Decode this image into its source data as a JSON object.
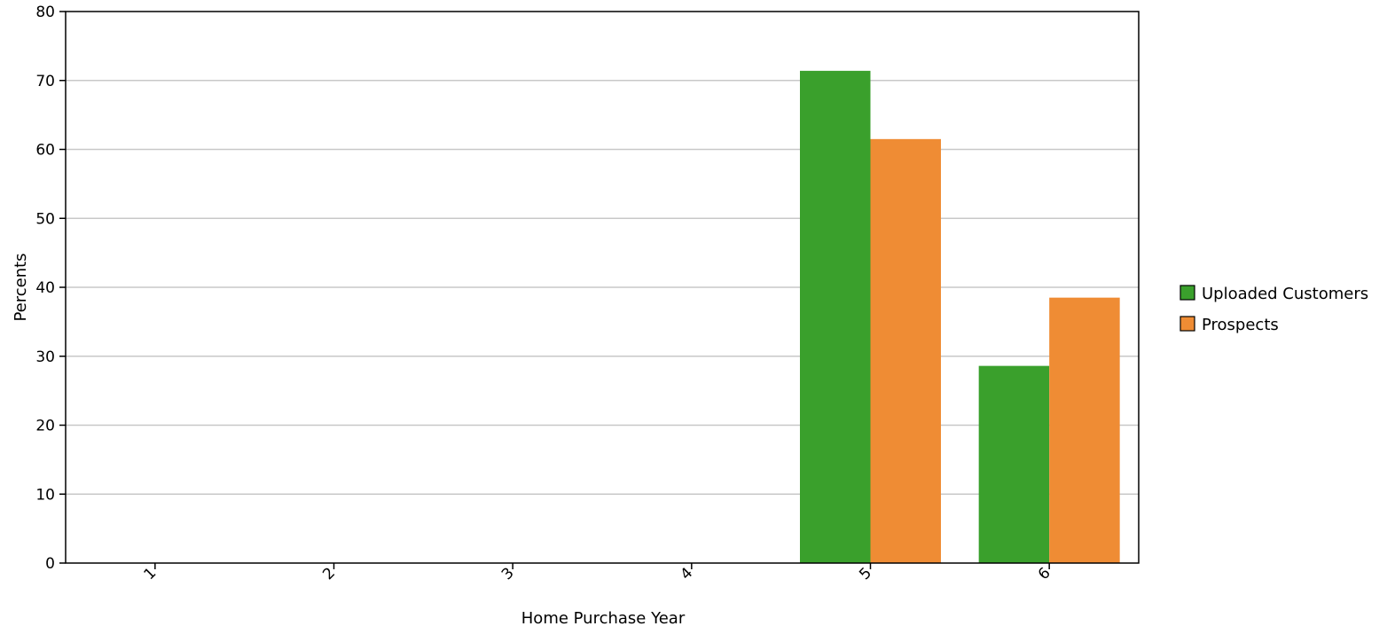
{
  "chart_data": {
    "type": "bar",
    "categories": [
      "1",
      "2",
      "3",
      "4",
      "5",
      "6"
    ],
    "series": [
      {
        "name": "Uploaded Customers",
        "color": "#3aa02c",
        "values": [
          0,
          0,
          0,
          0,
          71.4,
          28.6
        ]
      },
      {
        "name": "Prospects",
        "color": "#ef8c34",
        "values": [
          0,
          0,
          0,
          0,
          61.5,
          38.5
        ]
      }
    ],
    "title": "",
    "xlabel": "Home Purchase Year",
    "ylabel": "Percents",
    "ylim": [
      0,
      80
    ],
    "yticks": [
      0,
      10,
      20,
      30,
      40,
      50,
      60,
      70,
      80
    ],
    "grid": "horizontal",
    "legend_placement": "right"
  }
}
